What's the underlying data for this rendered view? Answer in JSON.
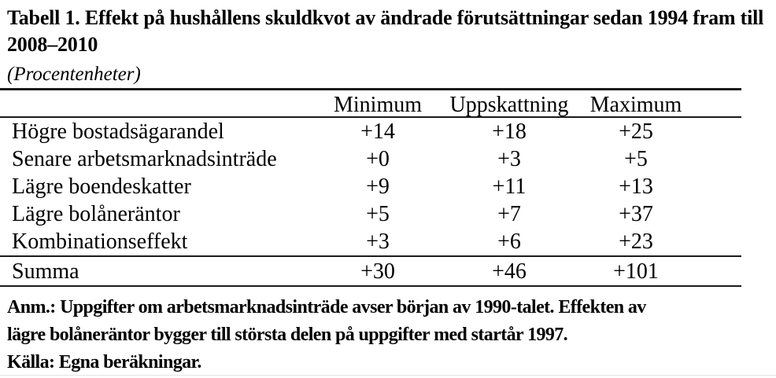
{
  "title": {
    "line1": "Tabell 1. Effekt på hushållens skuldkvot av ändrade förutsättningar sedan 1994 fram till",
    "line2": "2008–2010",
    "subtitle": "(Procentenheter)"
  },
  "table": {
    "corner_label": "",
    "columns": [
      "Minimum",
      "Uppskattning",
      "Maximum"
    ],
    "rows": [
      {
        "label": "Högre bostadsägarandel",
        "values": [
          "+14",
          "+18",
          "+25"
        ]
      },
      {
        "label": "Senare arbetsmarknadsinträde",
        "values": [
          "+0",
          "+3",
          "+5"
        ]
      },
      {
        "label": "Lägre boendeskatter",
        "values": [
          "+9",
          "+11",
          "+13"
        ]
      },
      {
        "label": "Lägre bolåneräntor",
        "values": [
          "+5",
          "+7",
          "+37"
        ]
      },
      {
        "label": "Kombinationseffekt",
        "values": [
          "+3",
          "+6",
          "+23"
        ]
      }
    ],
    "summary": {
      "label": "Summa",
      "values": [
        "+30",
        "+46",
        "+101"
      ]
    }
  },
  "notes": {
    "anm_line1": "Anm.: Uppgifter om arbetsmarknadsinträde avser början av 1990-talet. Effekten av",
    "anm_line2": "lägre bolåneräntor bygger till största delen på uppgifter med startår 1997.",
    "source": "Källa: Egna beräkningar."
  },
  "colors": {
    "text": "#000000",
    "rule": "#1b1b1b",
    "background": "#ffffff"
  }
}
